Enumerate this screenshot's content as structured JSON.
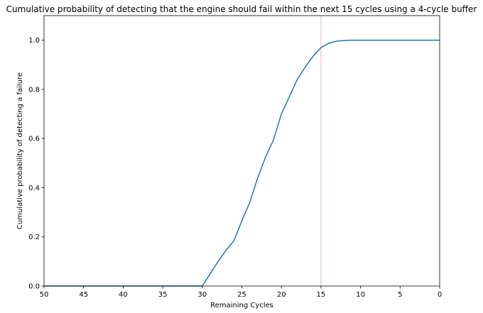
{
  "chart_data": {
    "type": "line",
    "title": "Cumulative probability of detecting that the engine should fail within the next 15 cycles using a 4-cycle buffer",
    "xlabel": "Remaining Cycles",
    "ylabel": "Cumulative probability of detecting a failure",
    "xlim": [
      50,
      0
    ],
    "ylim": [
      0,
      1.1
    ],
    "x_ticks": [
      50,
      45,
      40,
      35,
      30,
      25,
      20,
      15,
      10,
      5,
      0
    ],
    "x_tick_labels": [
      "50",
      "45",
      "40",
      "35",
      "30",
      "25",
      "20",
      "15",
      "10",
      "5",
      "0"
    ],
    "y_ticks": [
      0,
      0.2,
      0.4,
      0.6,
      0.8,
      1.0
    ],
    "y_tick_labels": [
      "0.0",
      "0.2",
      "0.4",
      "0.6",
      "0.8",
      "1.0"
    ],
    "grid": false,
    "series": [
      {
        "color": "#1f77b4",
        "x": [
          50,
          45,
          40,
          35,
          31,
          30,
          29,
          28,
          27,
          26,
          25,
          24,
          23,
          22,
          21,
          20,
          19,
          18,
          17,
          16,
          15,
          14,
          13,
          12,
          11,
          10,
          5,
          0
        ],
        "y": [
          0,
          0,
          0,
          0,
          0,
          0,
          0.05,
          0.1,
          0.145,
          0.185,
          0.265,
          0.34,
          0.44,
          0.525,
          0.595,
          0.7,
          0.77,
          0.84,
          0.89,
          0.935,
          0.97,
          0.988,
          0.996,
          0.999,
          1.0,
          1.0,
          1.0,
          1.0
        ]
      }
    ],
    "reference_line": {
      "x": 15,
      "color": "#f4a0a0"
    }
  }
}
